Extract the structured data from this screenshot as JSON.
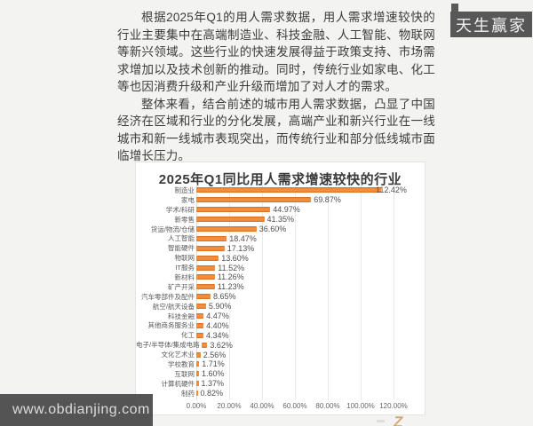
{
  "badge": {
    "label": "天生赢家"
  },
  "article": {
    "paragraphs": [
      "根据2025年Q1的用人需求数据，用人需求增速较快的行业主要集中在高端制造业、科技金融、人工智能、物联网等新兴领域。这些行业的快速发展得益于政策支持、市场需求增加以及技术创新的推动。同时，传统行业如家电、化工等也因消费升级和产业升级而增加了对人才的需求。",
      "整体来看，结合前述的城市用人需求数据，凸显了中国经济在区域和行业的分化发展，高端产业和新兴行业在一线城市和新一线城市表现突出，而传统行业和部分低线城市面临增长压力。"
    ]
  },
  "chart_data": {
    "type": "bar",
    "orientation": "horizontal",
    "title": "2025年Q1同比用人需求增速较快的行业",
    "categories": [
      "制造业",
      "家电",
      "学术/科研",
      "新零售",
      "货运/物流/仓储",
      "人工智能",
      "智能硬件",
      "物联网",
      "IT服务",
      "新材料",
      "矿产开采",
      "汽车零部件及配件",
      "航空/航天设备",
      "科技金融",
      "其他商务服务业",
      "化工",
      "电子/半导体/集成电路",
      "文化艺术业",
      "学校教育",
      "互联网",
      "计算机硬件",
      "制药"
    ],
    "values": [
      112.42,
      69.87,
      44.97,
      41.35,
      36.6,
      18.47,
      17.13,
      13.6,
      11.52,
      11.26,
      11.23,
      8.65,
      5.9,
      4.47,
      4.4,
      4.34,
      3.62,
      2.56,
      1.71,
      1.6,
      1.37,
      0.82
    ],
    "value_labels": [
      "112.42%",
      "69.87%",
      "44.97%",
      "41.35%",
      "36.60%",
      "18.47%",
      "17.13%",
      "13.60%",
      "11.52%",
      "11.26%",
      "11.23%",
      "8.65%",
      "5.90%",
      "4.47%",
      "4.40%",
      "4.34%",
      "3.62%",
      "2.56%",
      "1.71%",
      "1.60%",
      "1.37%",
      "0.82%"
    ],
    "x_ticks": [
      "0.00%",
      "20.00%",
      "40.00%",
      "60.00%",
      "80.00%",
      "100.00%",
      "120.00%"
    ],
    "xlim": [
      0,
      120
    ],
    "bar_color": "#ed7d31",
    "grid": true,
    "legend": "none"
  },
  "watermark": {
    "url_text": "www.obdianjing.com",
    "corner_mark": "Z"
  }
}
